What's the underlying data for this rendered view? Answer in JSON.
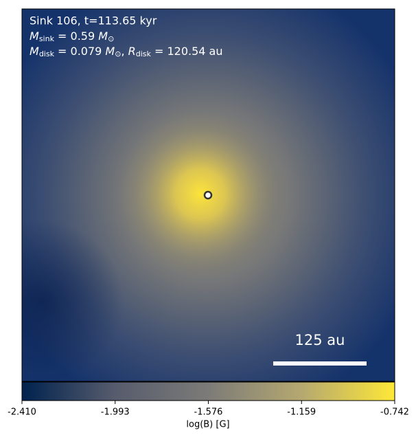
{
  "chart_data": {
    "type": "colormap-image",
    "annotations": {
      "line1": "Sink 106, t=113.65 kyr",
      "line2": [
        "M",
        "sink",
        " = 0.59 ",
        "M",
        "⊙"
      ],
      "line3": [
        "M",
        "disk",
        " = 0.079 ",
        "M",
        "⊙",
        ", ",
        "R",
        "disk",
        " = 120.54 au"
      ]
    },
    "scale_bar_label": "125 au",
    "colorbar": {
      "label": "log(B) [G]",
      "colormap": [
        "#00224e",
        "#575c6d",
        "#7c7b78",
        "#b5a870",
        "#fee838"
      ],
      "xlim": [
        -2.41,
        -0.742
      ],
      "xticks": [
        {
          "value": -2.41,
          "label": "-2.410"
        },
        {
          "value": -1.993,
          "label": "-1.993"
        },
        {
          "value": -1.576,
          "label": "-1.576"
        },
        {
          "value": -1.159,
          "label": "-1.159"
        },
        {
          "value": -0.742,
          "label": "-0.742"
        }
      ]
    }
  }
}
